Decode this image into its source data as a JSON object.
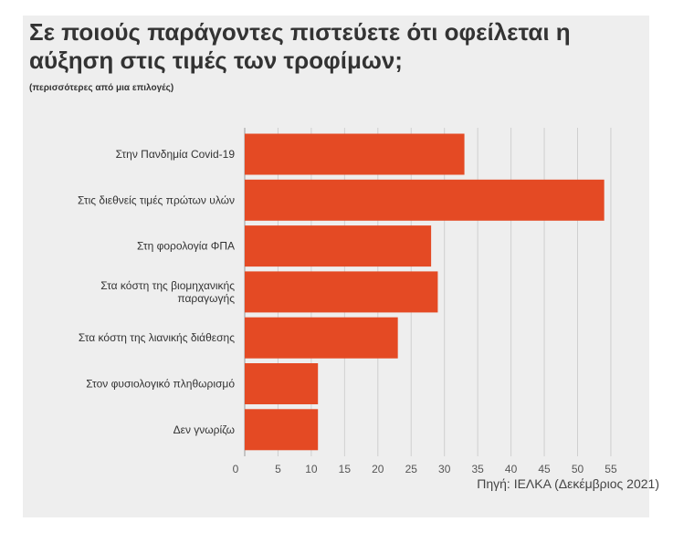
{
  "title": "Σε ποιούς παράγοντες πιστεύετε ότι οφείλεται η αύξηση στις τιμές των τροφίμων;",
  "subtitle": "(περισσότερες από μια επιλογές)",
  "source": "Πηγή: ΙΕΛΚΑ (Δεκέμβριος 2021)",
  "colors": {
    "bar": "#e44a24",
    "grid": "#cfcfcf",
    "axis": "#9a9a9a",
    "background": "#eeeeee"
  },
  "chart_data": {
    "type": "bar",
    "orientation": "horizontal",
    "categories": [
      [
        "Στην Πανδημία Covid-19"
      ],
      [
        "Στις διεθνείς τιμές πρώτων υλών"
      ],
      [
        "Στη φορολογία ΦΠΑ"
      ],
      [
        "Στα κόστη της βιομηχανικής",
        "παραγωγής"
      ],
      [
        "Στα κόστη της λιανικής διάθεσης"
      ],
      [
        "Στον φυσιολογικό πληθωρισμό"
      ],
      [
        "Δεν γνωρίζω"
      ]
    ],
    "values": [
      33,
      54,
      28,
      29,
      23,
      11,
      11
    ],
    "xlim": [
      0,
      55
    ],
    "ticks": [
      0,
      5,
      10,
      15,
      20,
      25,
      30,
      35,
      40,
      45,
      50,
      55
    ],
    "grid": true,
    "legend": "none"
  }
}
